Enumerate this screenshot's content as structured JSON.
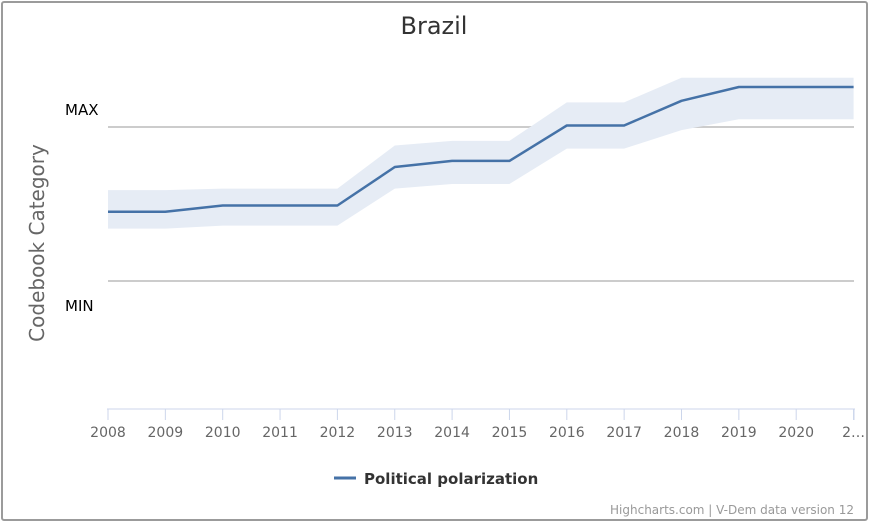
{
  "chart_data": {
    "type": "line",
    "title": "Brazil",
    "ylabel": "Codebook Category",
    "y_categories": [
      "MIN",
      "MAX"
    ],
    "ylim": [
      -0.7,
      1.3
    ],
    "x": [
      "2008",
      "2009",
      "2010",
      "2011",
      "2012",
      "2013",
      "2014",
      "2015",
      "2016",
      "2017",
      "2018",
      "2019",
      "2020",
      "2021"
    ],
    "x_tick_labels": [
      "2008",
      "2009",
      "2010",
      "2011",
      "2012",
      "2013",
      "2014",
      "2015",
      "2016",
      "2017",
      "2018",
      "2019",
      "2020",
      "2…"
    ],
    "series": [
      {
        "name": "Political polarization",
        "color": "#4572a7",
        "values": [
          0.45,
          0.45,
          0.49,
          0.49,
          0.49,
          0.74,
          0.78,
          0.78,
          1.01,
          1.01,
          1.17,
          1.26,
          1.26,
          1.26
        ],
        "band_low": [
          0.34,
          0.34,
          0.36,
          0.36,
          0.36,
          0.6,
          0.63,
          0.63,
          0.86,
          0.86,
          0.98,
          1.05,
          1.05,
          1.05
        ],
        "band_high": [
          0.59,
          0.59,
          0.6,
          0.6,
          0.6,
          0.88,
          0.91,
          0.91,
          1.16,
          1.16,
          1.32,
          1.32,
          1.32,
          1.32
        ]
      }
    ],
    "band_color": "#e6ecf5",
    "grid": true,
    "legend_position": "bottom-center"
  },
  "credits": "Highcharts.com | V-Dem data version 12"
}
